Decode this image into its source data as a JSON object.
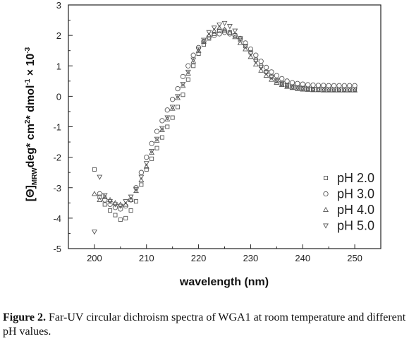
{
  "chart_data": {
    "type": "scatter",
    "xlabel": "wavelength (nm)",
    "ylabel_parts": {
      "theta": "[Θ]",
      "sub": "MRW",
      "mid": "deg* cm",
      "sup2": "2",
      "mid2": "* dmol",
      "sup_neg1": "-1",
      "tail": " × 10",
      "sup_neg3": "-3"
    },
    "xlim": [
      195,
      255
    ],
    "ylim": [
      -5,
      3
    ],
    "xticks": [
      200,
      210,
      220,
      230,
      240,
      250
    ],
    "yticks": [
      -5,
      -4,
      -3,
      -2,
      -1,
      0,
      1,
      2,
      3
    ],
    "legend_position": "lower-right",
    "series": [
      {
        "name": "pH 2.0",
        "marker": "square",
        "x": [
          200,
          201,
          202,
          203,
          204,
          205,
          206,
          207,
          208,
          209,
          210,
          211,
          212,
          213,
          214,
          215,
          216,
          217,
          218,
          219,
          220,
          221,
          222,
          223,
          224,
          225,
          226,
          227,
          228,
          229,
          230,
          231,
          232,
          233,
          234,
          235,
          236,
          237,
          238,
          239,
          240,
          241,
          242,
          243,
          244,
          245,
          246,
          247,
          248,
          249,
          250
        ],
        "y": [
          -2.4,
          -3.3,
          -3.55,
          -3.75,
          -3.9,
          -4.05,
          -4.0,
          -3.75,
          -3.45,
          -2.9,
          -2.4,
          -2.05,
          -1.7,
          -1.35,
          -1.0,
          -0.7,
          -0.35,
          0.05,
          0.55,
          1.0,
          1.4,
          1.7,
          1.9,
          2.05,
          2.15,
          2.15,
          2.1,
          2.0,
          1.85,
          1.65,
          1.45,
          1.2,
          1.0,
          0.8,
          0.65,
          0.5,
          0.4,
          0.35,
          0.3,
          0.27,
          0.25,
          0.24,
          0.23,
          0.22,
          0.22,
          0.22,
          0.22,
          0.22,
          0.22,
          0.22,
          0.22
        ]
      },
      {
        "name": "pH 3.0",
        "marker": "circle",
        "x": [
          201,
          202,
          203,
          204,
          205,
          206,
          207,
          208,
          209,
          210,
          211,
          212,
          213,
          214,
          215,
          216,
          217,
          218,
          219,
          220,
          221,
          222,
          223,
          224,
          225,
          226,
          227,
          228,
          229,
          230,
          231,
          232,
          233,
          234,
          235,
          236,
          237,
          238,
          239,
          240,
          241,
          242,
          243,
          244,
          245,
          246,
          247,
          248,
          249,
          250
        ],
        "y": [
          -3.2,
          -3.4,
          -3.55,
          -3.65,
          -3.7,
          -3.6,
          -3.4,
          -3.0,
          -2.5,
          -2.0,
          -1.55,
          -1.15,
          -0.8,
          -0.45,
          -0.1,
          0.25,
          0.65,
          1.0,
          1.35,
          1.6,
          1.8,
          1.95,
          2.0,
          2.05,
          2.1,
          2.05,
          2.0,
          1.9,
          1.75,
          1.55,
          1.35,
          1.15,
          0.95,
          0.8,
          0.68,
          0.58,
          0.5,
          0.45,
          0.42,
          0.4,
          0.38,
          0.37,
          0.36,
          0.36,
          0.35,
          0.35,
          0.35,
          0.35,
          0.35,
          0.35
        ]
      },
      {
        "name": "pH 4.0",
        "marker": "triangle-up",
        "x": [
          200,
          201,
          202,
          203,
          204,
          205,
          206,
          207,
          208,
          209,
          210,
          211,
          212,
          213,
          214,
          215,
          216,
          217,
          218,
          219,
          220,
          221,
          222,
          223,
          224,
          225,
          226,
          227,
          228,
          229,
          230,
          231,
          232,
          233,
          234,
          235,
          236,
          237,
          238,
          239,
          240,
          241,
          242,
          243,
          244,
          245,
          246,
          247,
          248,
          249,
          250
        ],
        "y": [
          -3.2,
          -3.4,
          -3.3,
          -3.4,
          -3.5,
          -3.55,
          -3.55,
          -3.4,
          -3.1,
          -2.75,
          -2.3,
          -1.85,
          -1.45,
          -1.1,
          -0.75,
          -0.4,
          -0.05,
          0.35,
          0.75,
          1.15,
          1.5,
          1.8,
          2.0,
          2.15,
          2.25,
          2.2,
          2.1,
          1.95,
          1.75,
          1.55,
          1.3,
          1.05,
          0.85,
          0.68,
          0.55,
          0.45,
          0.38,
          0.32,
          0.28,
          0.25,
          0.23,
          0.22,
          0.21,
          0.21,
          0.2,
          0.2,
          0.2,
          0.2,
          0.2,
          0.2,
          0.2
        ]
      },
      {
        "name": "pH 5.0",
        "marker": "triangle-down",
        "x": [
          200,
          201,
          202,
          203,
          204,
          205,
          206,
          207,
          208,
          209,
          210,
          211,
          212,
          213,
          214,
          215,
          216,
          217,
          218,
          219,
          220,
          221,
          222,
          223,
          224,
          225,
          226,
          227,
          228,
          229,
          230,
          231,
          232,
          233,
          234,
          235,
          236,
          237,
          238,
          239,
          240,
          241,
          242,
          243,
          244,
          245,
          246,
          247,
          248,
          249,
          250
        ],
        "y": [
          -4.45,
          -2.65,
          -3.25,
          -3.45,
          -3.55,
          -3.6,
          -3.45,
          -3.3,
          -3.05,
          -2.65,
          -2.2,
          -1.8,
          -1.4,
          -1.05,
          -0.7,
          -0.35,
          0.0,
          0.4,
          0.8,
          1.2,
          1.55,
          1.85,
          2.1,
          2.25,
          2.35,
          2.4,
          2.3,
          2.15,
          1.9,
          1.65,
          1.4,
          1.15,
          0.95,
          0.78,
          0.63,
          0.52,
          0.43,
          0.37,
          0.32,
          0.29,
          0.27,
          0.25,
          0.24,
          0.23,
          0.23,
          0.22,
          0.22,
          0.22,
          0.22,
          0.22,
          0.22
        ]
      }
    ]
  },
  "caption": {
    "label": "Figure 2.",
    "text": " Far-UV circular dichroism spectra of WGA1 at room temperature and different pH values."
  },
  "colors": {
    "marker": "#555555",
    "axis": "#222222"
  }
}
